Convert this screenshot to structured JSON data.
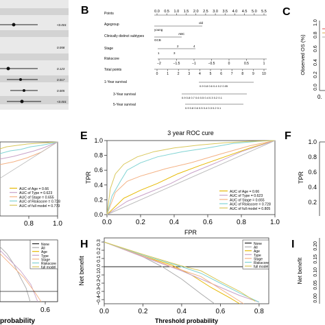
{
  "panels": {
    "B": "B",
    "C": "C",
    "E": "E",
    "F": "F",
    "H": "H",
    "I": "I"
  },
  "forest_fragment": {
    "pvalues": [
      "<0.001",
      "0.058",
      "0.123",
      "0.017",
      "0.005",
      "<0.001"
    ]
  },
  "nomogram": {
    "rows": [
      {
        "label": "Points"
      },
      {
        "label": "Agegroup",
        "levels": [
          "young",
          "old"
        ]
      },
      {
        "label": "Clinically distinct subtypes",
        "levels": [
          "ABC",
          "GCB"
        ]
      },
      {
        "label": "Stage",
        "levels": [
          "1",
          "2",
          "3",
          "4"
        ]
      },
      {
        "label": "Riskscore"
      },
      {
        "label": "Total points"
      },
      {
        "label": "1-Year survival"
      },
      {
        "label": "3-Year survival"
      },
      {
        "label": "5-Year survival"
      }
    ],
    "points_ticks": [
      "0.0",
      "0.5",
      "1.0",
      "1.5",
      "2.0",
      "2.5",
      "3.0",
      "3.5",
      "4.0",
      "4.5",
      "5.0",
      "5.5"
    ],
    "riskscore_ticks": [
      "−2",
      "−1.5",
      "−1",
      "−0.5",
      "0",
      "0.5",
      "1"
    ],
    "total_ticks": [
      "0",
      "1",
      "2",
      "3",
      "4",
      "5",
      "6",
      "7",
      "8",
      "9",
      "10"
    ],
    "survival1_ticks": "0.9 0.8 0.6 0.4 0.2 0.05",
    "survival3_ticks": "0.9 0.8 0.7 0.6 0.5 0.4 0.3 0.2 0.1",
    "survival5_ticks": "0.9 0.8 0.6 0.5 0.4 0.3 0.2 0.1"
  },
  "calibration_fragment": {
    "ylabel": "Observed OS (%)",
    "ytick_labels": [
      "1.0",
      "0.8",
      "0.6",
      "0.4",
      "0.2",
      "0.0"
    ],
    "xtick_label": "0."
  },
  "left_roc_fragment": {
    "xtick_labels": [
      "0.8",
      "1.0"
    ]
  },
  "right_roc_fragment": {
    "ylabel": "TPR",
    "ytick_labels": [
      "1.0",
      "0.8",
      "0.6",
      "0.4",
      "0.2"
    ]
  },
  "left_dca_fragment": {
    "xlabel": "probability",
    "xtick_labels": [
      "0.6"
    ],
    "legend": [
      "None",
      "All",
      "Age",
      "Type",
      "Stage",
      "Riskscore",
      "full model"
    ]
  },
  "right_dca_fragment": {
    "ylabel": "Net benefit",
    "ytick_labels": [
      "0.20",
      "0.15",
      "0.10",
      "0.05",
      "0.00"
    ]
  },
  "colors": {
    "age": "#e6b800",
    "type": "#c8a2c8",
    "stage": "#f4b183",
    "riskscore": "#7fd3d3",
    "full_model": "#d9c75a",
    "reference": "#bbbbbb",
    "stage_text": "#f4a25a"
  },
  "chart_data": [
    {
      "type": "line",
      "panel": "E",
      "title": "3 year ROC cure",
      "xlabel": "FPR",
      "ylabel": "TPR",
      "xlim": [
        0,
        1
      ],
      "ylim": [
        0,
        1
      ],
      "x_ticks": [
        0.0,
        0.2,
        0.4,
        0.6,
        0.8,
        1.0
      ],
      "y_ticks": [
        0.0,
        0.2,
        0.4,
        0.6,
        0.8,
        1.0
      ],
      "x_tick_labels": [
        "0.0",
        "0.2",
        "0.4",
        "0.6",
        "0.8",
        "1.0"
      ],
      "y_tick_labels": [
        "0.0",
        "0.2",
        "0.4",
        "0.6",
        "0.8",
        "1.0"
      ],
      "legend_position": "bottom-right",
      "series": [
        {
          "name": "AUC of Age = 0.66",
          "color": "#e6b800",
          "points": [
            [
              0,
              0
            ],
            [
              0.1,
              0.22
            ],
            [
              0.2,
              0.33
            ],
            [
              0.3,
              0.42
            ],
            [
              0.42,
              0.55
            ],
            [
              0.55,
              0.66
            ],
            [
              0.7,
              0.78
            ],
            [
              0.85,
              0.9
            ],
            [
              1,
              1
            ]
          ]
        },
        {
          "name": "AUC of Type = 0.623",
          "color": "#c8a2c8",
          "points": [
            [
              0,
              0
            ],
            [
              0.12,
              0.18
            ],
            [
              0.25,
              0.3
            ],
            [
              0.38,
              0.42
            ],
            [
              0.5,
              0.56
            ],
            [
              0.65,
              0.7
            ],
            [
              0.8,
              0.85
            ],
            [
              1,
              1
            ]
          ]
        },
        {
          "name": "AUC of Stage = 0.655",
          "color": "#f4b183",
          "points": [
            [
              0,
              0
            ],
            [
              0.05,
              0.3
            ],
            [
              0.12,
              0.45
            ],
            [
              0.2,
              0.52
            ],
            [
              0.35,
              0.62
            ],
            [
              0.5,
              0.7
            ],
            [
              0.68,
              0.82
            ],
            [
              0.85,
              0.93
            ],
            [
              1,
              1
            ]
          ]
        },
        {
          "name": "AUC of Riskscore = 0.728",
          "color": "#7fd3d3",
          "points": [
            [
              0,
              0
            ],
            [
              0.03,
              0.25
            ],
            [
              0.08,
              0.45
            ],
            [
              0.12,
              0.6
            ],
            [
              0.2,
              0.7
            ],
            [
              0.3,
              0.78
            ],
            [
              0.45,
              0.85
            ],
            [
              0.6,
              0.9
            ],
            [
              0.75,
              0.96
            ],
            [
              0.9,
              0.99
            ],
            [
              1,
              1
            ]
          ]
        },
        {
          "name": "AUC of full model = 0.805",
          "color": "#d9c75a",
          "points": [
            [
              0,
              0
            ],
            [
              0.02,
              0.35
            ],
            [
              0.05,
              0.55
            ],
            [
              0.1,
              0.68
            ],
            [
              0.18,
              0.78
            ],
            [
              0.28,
              0.85
            ],
            [
              0.4,
              0.9
            ],
            [
              0.55,
              0.94
            ],
            [
              0.7,
              0.97
            ],
            [
              0.85,
              0.99
            ],
            [
              1,
              1
            ]
          ]
        },
        {
          "name": "",
          "color": "#bbbbbb",
          "points": [
            [
              0,
              0
            ],
            [
              1,
              1
            ]
          ]
        }
      ]
    },
    {
      "type": "line",
      "panel": "H",
      "title": "",
      "xlabel": "Threshold probability",
      "ylabel": "Net benefit",
      "xlim": [
        0,
        0.85
      ],
      "ylim": [
        -0.45,
        0.35
      ],
      "x_ticks": [
        0.0,
        0.2,
        0.4,
        0.6,
        0.8
      ],
      "y_ticks": [
        -0.4,
        -0.3,
        -0.2,
        -0.1,
        0.0,
        0.1,
        0.2,
        0.3
      ],
      "x_tick_labels": [
        "0.0",
        "0.2",
        "0.4",
        "0.6",
        "0.8"
      ],
      "y_tick_labels": [
        "−0.4",
        "−0.3",
        "−0.2",
        "−0.1",
        "0.0",
        "0.1",
        "0.2",
        "0.3"
      ],
      "legend_position": "top-right",
      "series": [
        {
          "name": "None",
          "color": "#222222",
          "points": [
            [
              0,
              0
            ],
            [
              0.85,
              0
            ]
          ]
        },
        {
          "name": "All",
          "color": "#aaaaaa",
          "points": [
            [
              0,
              0.3
            ],
            [
              0.1,
              0.22
            ],
            [
              0.2,
              0.12
            ],
            [
              0.3,
              0.0
            ],
            [
              0.4,
              -0.15
            ],
            [
              0.5,
              -0.33
            ],
            [
              0.57,
              -0.45
            ]
          ]
        },
        {
          "name": "Age",
          "color": "#e6b800",
          "points": [
            [
              0,
              0.3
            ],
            [
              0.2,
              0.13
            ],
            [
              0.35,
              0.02
            ],
            [
              0.45,
              -0.1
            ],
            [
              0.55,
              -0.25
            ],
            [
              0.65,
              -0.38
            ],
            [
              0.7,
              -0.45
            ]
          ]
        },
        {
          "name": "Type",
          "color": "#c8a2c8",
          "points": [
            [
              0,
              0.3
            ],
            [
              0.2,
              0.12
            ],
            [
              0.4,
              -0.05
            ],
            [
              0.55,
              -0.2
            ],
            [
              0.7,
              -0.35
            ],
            [
              0.8,
              -0.43
            ]
          ]
        },
        {
          "name": "Stage",
          "color": "#f4b183",
          "points": [
            [
              0,
              0.3
            ],
            [
              0.2,
              0.13
            ],
            [
              0.35,
              0.0
            ],
            [
              0.5,
              -0.12
            ],
            [
              0.62,
              -0.3
            ],
            [
              0.72,
              -0.45
            ]
          ]
        },
        {
          "name": "Riskscore",
          "color": "#7fd3d3",
          "points": [
            [
              0,
              0.3
            ],
            [
              0.2,
              0.14
            ],
            [
              0.4,
              0.0
            ],
            [
              0.5,
              -0.08
            ],
            [
              0.6,
              -0.2
            ],
            [
              0.7,
              -0.32
            ],
            [
              0.8,
              -0.43
            ]
          ]
        },
        {
          "name": "full model",
          "color": "#d9c75a",
          "points": [
            [
              0,
              0.3
            ],
            [
              0.2,
              0.15
            ],
            [
              0.4,
              0.01
            ],
            [
              0.5,
              -0.05
            ],
            [
              0.6,
              -0.18
            ],
            [
              0.7,
              -0.3
            ],
            [
              0.78,
              -0.42
            ]
          ]
        }
      ]
    },
    {
      "type": "line",
      "panel": "left-roc-fragment",
      "legend_position": "bottom-right",
      "series": [
        {
          "name": "AUC of Age = 0.66",
          "color": "#e6b800"
        },
        {
          "name": "AUC of Type = 0.623",
          "color": "#c8a2c8"
        },
        {
          "name": "AUC of Stage = 0.655",
          "color": "#f4b183"
        },
        {
          "name": "AUC of Riskscore = 0.728",
          "color": "#7fd3d3"
        },
        {
          "name": "AUC of full model = 0.773",
          "color": "#d9c75a"
        }
      ]
    }
  ]
}
